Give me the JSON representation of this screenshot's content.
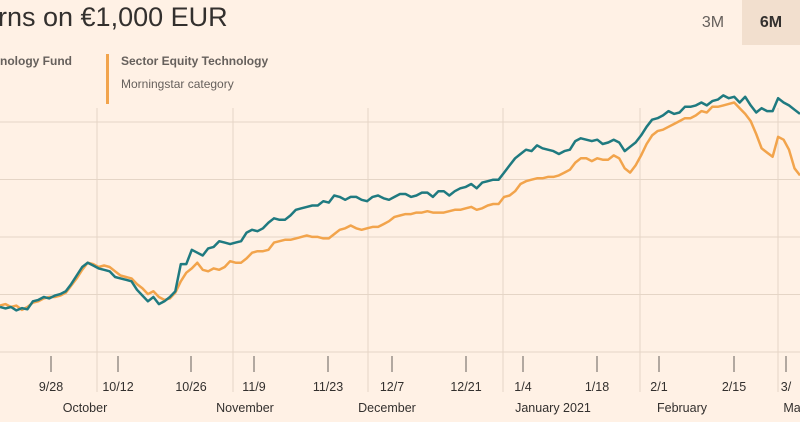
{
  "header": {
    "title": "rns on €1,000 EUR"
  },
  "legend": {
    "fund_name": "nology Fund",
    "category_name": "Sector Equity Technology",
    "category_sub": "Morningstar category"
  },
  "range_tabs": [
    {
      "label": "3M",
      "active": false
    },
    {
      "label": "6M",
      "active": true
    }
  ],
  "colors": {
    "fund": "#1f7a80",
    "category": "#f2a44c",
    "background": "#fff1e5"
  },
  "chart_data": {
    "type": "line",
    "xlabel": "",
    "ylabel": "",
    "grid": true,
    "x_ticks": [
      "9/28",
      "10/12",
      "10/26",
      "11/9",
      "11/23",
      "12/7",
      "12/21",
      "1/4",
      "1/18",
      "2/1",
      "2/15",
      "3/"
    ],
    "month_labels": [
      "October",
      "November",
      "December",
      "January 2021",
      "February",
      "Ma"
    ],
    "series": [
      {
        "name": "nology Fund",
        "color": "#1f7a80",
        "values": [
          0.0,
          -0.05,
          0.0,
          -0.12,
          -0.04,
          -0.08,
          0.2,
          0.25,
          0.35,
          0.3,
          0.4,
          0.45,
          0.55,
          0.8,
          1.1,
          1.4,
          1.55,
          1.45,
          1.35,
          1.3,
          1.25,
          1.05,
          1.0,
          0.95,
          0.9,
          0.6,
          0.4,
          0.2,
          0.35,
          0.1,
          0.2,
          0.35,
          0.55,
          1.5,
          1.5,
          2.0,
          1.9,
          1.8,
          2.05,
          2.1,
          2.3,
          2.25,
          2.2,
          2.25,
          2.3,
          2.6,
          2.7,
          2.65,
          2.75,
          2.95,
          3.1,
          3.05,
          3.05,
          3.2,
          3.4,
          3.45,
          3.5,
          3.55,
          3.55,
          3.7,
          3.65,
          3.9,
          3.85,
          3.75,
          3.85,
          3.85,
          3.75,
          3.7,
          3.85,
          3.9,
          3.8,
          3.75,
          3.85,
          3.95,
          3.95,
          3.85,
          3.9,
          4.0,
          4.0,
          3.85,
          4.05,
          4.05,
          3.9,
          4.05,
          4.15,
          4.2,
          4.3,
          4.15,
          4.35,
          4.4,
          4.45,
          4.45,
          4.7,
          4.95,
          5.2,
          5.35,
          5.5,
          5.45,
          5.65,
          5.55,
          5.5,
          5.45,
          5.35,
          5.45,
          5.5,
          5.8,
          5.9,
          5.85,
          5.8,
          5.85,
          5.7,
          5.75,
          5.85,
          5.75,
          5.45,
          5.6,
          5.75,
          6.0,
          6.3,
          6.55,
          6.6,
          6.7,
          6.85,
          6.75,
          6.8,
          7.0,
          7.0,
          7.05,
          7.15,
          7.05,
          7.2,
          7.25,
          7.4,
          7.3,
          7.35,
          7.15,
          7.35,
          7.05,
          6.8,
          6.95,
          6.85,
          6.85,
          7.3,
          7.15,
          7.05,
          6.9,
          6.75
        ],
        "_note": ""
      },
      {
        "name": "Sector Equity Technology",
        "color": "#f2a44c",
        "values": [
          0.05,
          0.1,
          0.0,
          0.05,
          -0.1,
          0.0,
          0.15,
          0.2,
          0.3,
          0.35,
          0.35,
          0.4,
          0.5,
          0.75,
          1.0,
          1.3,
          1.55,
          1.5,
          1.4,
          1.45,
          1.4,
          1.25,
          1.1,
          1.05,
          1.0,
          0.8,
          0.65,
          0.45,
          0.55,
          0.35,
          0.25,
          0.3,
          0.5,
          0.9,
          1.2,
          1.35,
          1.55,
          1.3,
          1.25,
          1.35,
          1.3,
          1.4,
          1.6,
          1.55,
          1.55,
          1.7,
          1.9,
          1.95,
          1.95,
          2.0,
          2.25,
          2.3,
          2.35,
          2.35,
          2.4,
          2.45,
          2.5,
          2.45,
          2.45,
          2.4,
          2.4,
          2.55,
          2.7,
          2.75,
          2.85,
          2.75,
          2.7,
          2.75,
          2.8,
          2.8,
          2.9,
          3.0,
          3.15,
          3.2,
          3.25,
          3.25,
          3.3,
          3.3,
          3.35,
          3.3,
          3.3,
          3.3,
          3.35,
          3.4,
          3.4,
          3.45,
          3.5,
          3.4,
          3.45,
          3.55,
          3.6,
          3.6,
          3.85,
          3.9,
          4.05,
          4.3,
          4.4,
          4.45,
          4.5,
          4.5,
          4.55,
          4.55,
          4.6,
          4.7,
          4.8,
          5.05,
          5.2,
          5.2,
          5.1,
          5.2,
          5.15,
          5.15,
          5.3,
          5.2,
          4.85,
          4.7,
          4.95,
          5.3,
          5.7,
          6.0,
          6.15,
          6.2,
          6.3,
          6.4,
          6.5,
          6.6,
          6.6,
          6.7,
          6.85,
          6.8,
          7.0,
          7.0,
          7.05,
          7.1,
          7.15,
          6.95,
          6.75,
          6.5,
          6.05,
          5.55,
          5.4,
          5.25,
          5.95,
          5.85,
          5.5,
          4.85,
          4.6
        ]
      }
    ]
  }
}
